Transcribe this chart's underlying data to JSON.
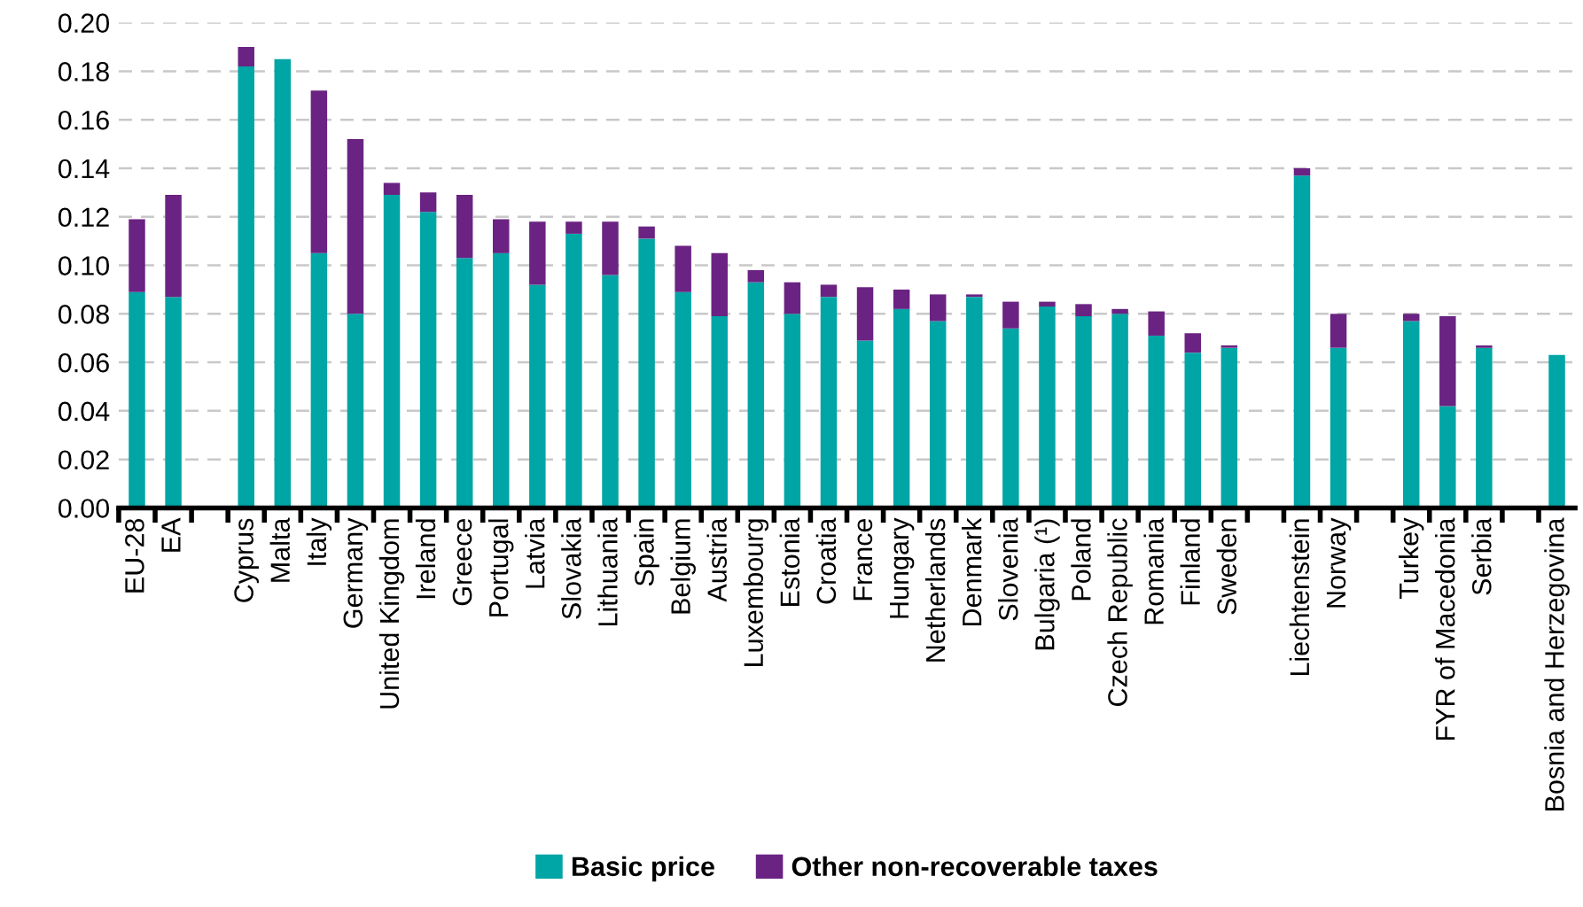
{
  "chart_data": {
    "type": "bar",
    "stacked": true,
    "categories": [
      "EU-28",
      "EA",
      null,
      "Cyprus",
      "Malta",
      "Italy",
      "Germany",
      "United Kingdom",
      "Ireland",
      "Greece",
      "Portugal",
      "Latvia",
      "Slovakia",
      "Lithuania",
      "Spain",
      "Belgium",
      "Austria",
      "Luxembourg",
      "Estonia",
      "Croatia",
      "France",
      "Hungary",
      "Netherlands",
      "Denmark",
      "Slovenia",
      "Bulgaria (¹)",
      "Poland",
      "Czech Republic",
      "Romania",
      "Finland",
      "Sweden",
      null,
      "Liechtenstein",
      "Norway",
      null,
      "Turkey",
      "FYR of Macedonia",
      "Serbia",
      null,
      "Bosnia and Herzegovina"
    ],
    "series": [
      {
        "name": "Basic price",
        "color": "#00a5a5",
        "values": [
          0.089,
          0.087,
          null,
          0.182,
          0.185,
          0.105,
          0.08,
          0.129,
          0.122,
          0.103,
          0.105,
          0.092,
          0.113,
          0.096,
          0.111,
          0.089,
          0.079,
          0.093,
          0.08,
          0.087,
          0.069,
          0.082,
          0.077,
          0.087,
          0.074,
          0.083,
          0.079,
          0.08,
          0.071,
          0.064,
          0.066,
          null,
          0.137,
          0.066,
          null,
          0.077,
          0.042,
          0.066,
          null,
          0.063
        ]
      },
      {
        "name": "Other non-recoverable taxes",
        "color": "#6a2382",
        "values": [
          0.03,
          0.042,
          null,
          0.008,
          0,
          0.067,
          0.072,
          0.005,
          0.008,
          0.026,
          0.014,
          0.026,
          0.005,
          0.022,
          0.005,
          0.019,
          0.026,
          0.005,
          0.013,
          0.005,
          0.022,
          0.008,
          0.011,
          0.001,
          0.011,
          0.002,
          0.005,
          0.002,
          0.01,
          0.008,
          0.001,
          null,
          0.003,
          0.014,
          null,
          0.003,
          0.037,
          0.001,
          null,
          0
        ]
      }
    ],
    "ylim": [
      0,
      0.2
    ],
    "yticks": [
      {
        "value": 0,
        "label": "0.00"
      },
      {
        "value": 0.02,
        "label": "0.02"
      },
      {
        "value": 0.04,
        "label": "0.04"
      },
      {
        "value": 0.06,
        "label": "0.06"
      },
      {
        "value": 0.08,
        "label": "0.08"
      },
      {
        "value": 0.1,
        "label": "0.10"
      },
      {
        "value": 0.12,
        "label": "0.12"
      },
      {
        "value": 0.14,
        "label": "0.14"
      },
      {
        "value": 0.16,
        "label": "0.16"
      },
      {
        "value": 0.18,
        "label": "0.18"
      },
      {
        "value": 0.2,
        "label": "0.20"
      }
    ],
    "grid": "y",
    "legend": "bottom"
  }
}
